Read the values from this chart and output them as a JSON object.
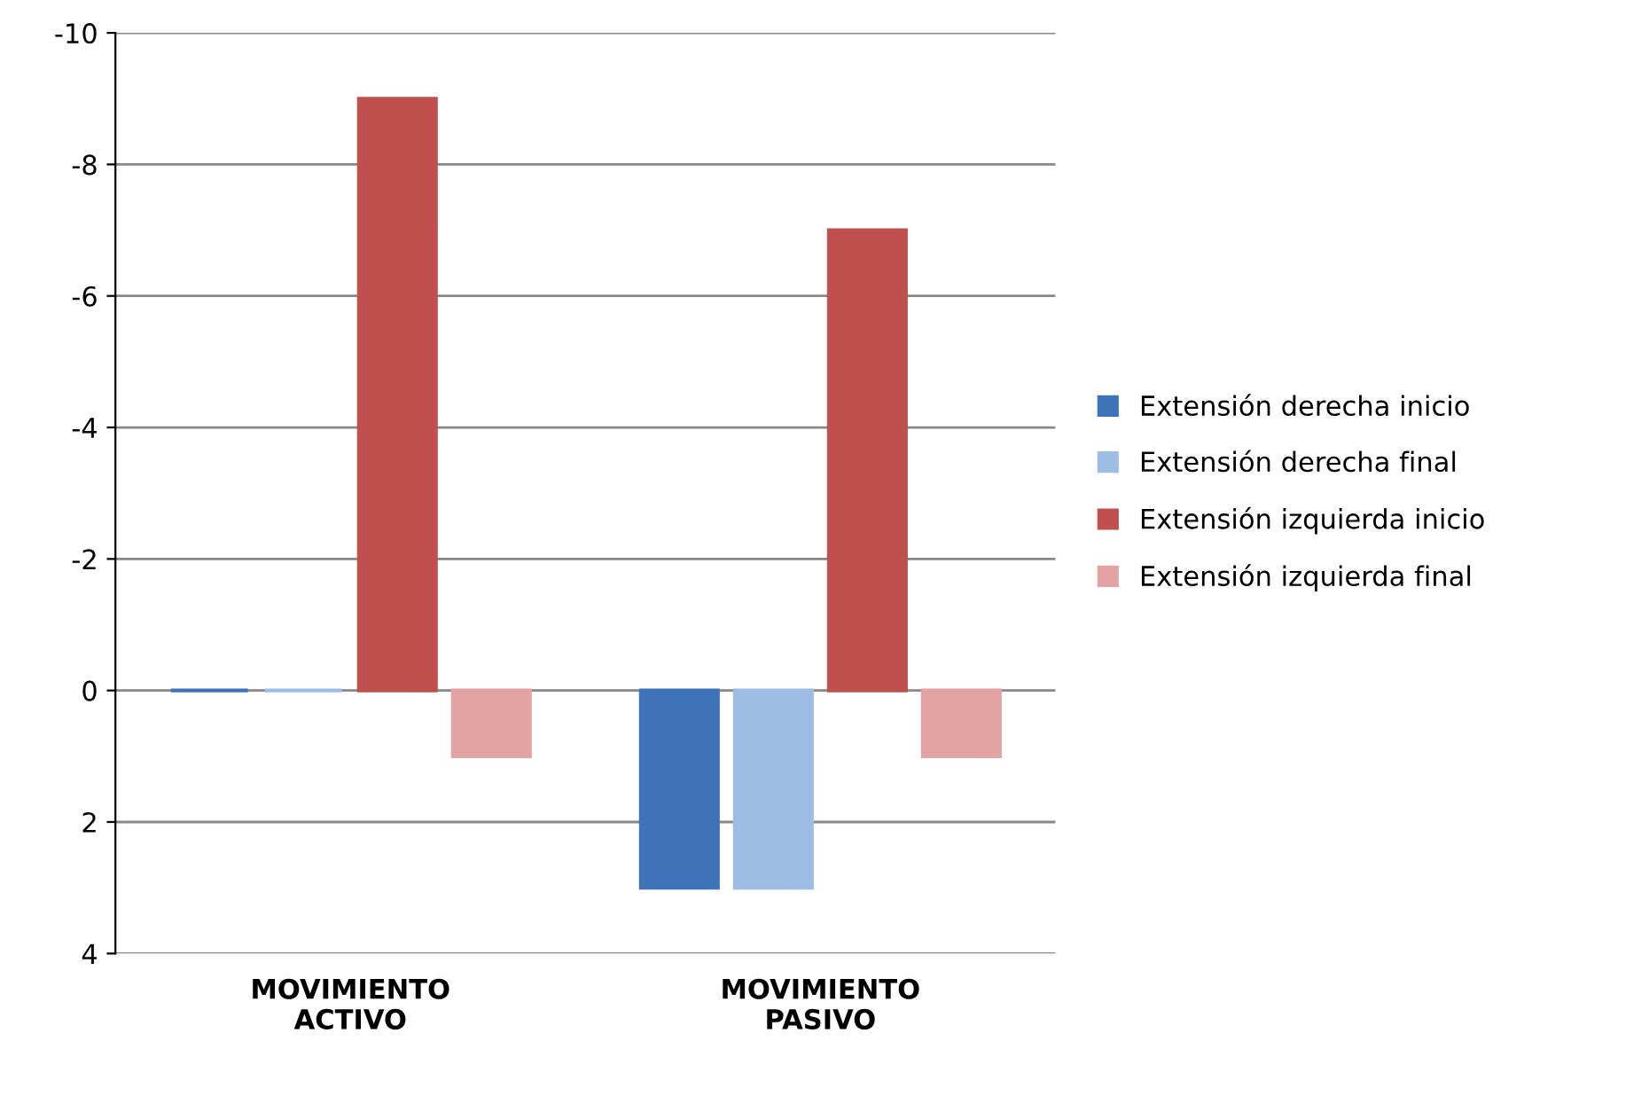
{
  "chart_data": {
    "type": "bar",
    "categories": [
      "MOVIMIENTO ACTIVO",
      "MOVIMIENTO PASIVO"
    ],
    "series": [
      {
        "name": "Extensión derecha inicio",
        "color": "#3f73b9",
        "values": [
          0,
          3
        ]
      },
      {
        "name": "Extensión derecha final",
        "color": "#9dbde4",
        "values": [
          0,
          3
        ]
      },
      {
        "name": "Extensión izquierda inicio",
        "color": "#c0504d",
        "values": [
          -9,
          -7
        ]
      },
      {
        "name": "Extensión izquierda final",
        "color": "#e3a3a2",
        "values": [
          1,
          1
        ]
      }
    ],
    "ylim": [
      4,
      -10
    ],
    "yticks": [
      -10,
      -8,
      -6,
      -4,
      -2,
      0,
      2,
      4
    ],
    "grid": "y",
    "legend": "right"
  }
}
